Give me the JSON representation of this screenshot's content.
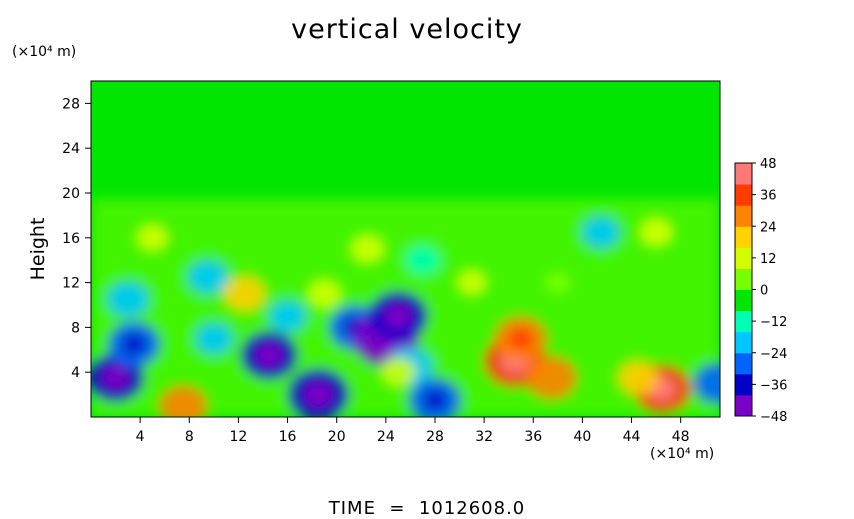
{
  "chart_data": {
    "type": "heatmap",
    "title": "vertical velocity",
    "ylabel": "Height",
    "x_unit": "(×10⁴ m)",
    "y_unit": "(×10⁴ m)",
    "footer": "TIME  =  1012608.0",
    "x_ticks": [
      4,
      8,
      12,
      16,
      20,
      24,
      28,
      32,
      36,
      40,
      44,
      48
    ],
    "y_ticks": [
      4,
      8,
      12,
      16,
      20,
      24,
      28
    ],
    "xlim": [
      0,
      51.2
    ],
    "ylim": [
      0,
      30
    ],
    "colorbar": {
      "ticks": [
        48,
        36,
        24,
        12,
        0,
        -12,
        -24,
        -36,
        -48
      ],
      "labels": [
        "48",
        "36",
        "24",
        "12",
        "0",
        "−12",
        "−24",
        "−36",
        "−48"
      ],
      "range": [
        -48,
        48
      ]
    },
    "features": [
      {
        "x": 2.0,
        "y": 3.5,
        "value": -34
      },
      {
        "x": 3.5,
        "y": 6.5,
        "value": -30
      },
      {
        "x": 3.0,
        "y": 10.5,
        "value": -22
      },
      {
        "x": 7.5,
        "y": 1.0,
        "value": 26
      },
      {
        "x": 12.5,
        "y": 11.0,
        "value": 22
      },
      {
        "x": 9.5,
        "y": 12.5,
        "value": -20
      },
      {
        "x": 10.0,
        "y": 7.0,
        "value": -18
      },
      {
        "x": 14.5,
        "y": 5.5,
        "value": -34
      },
      {
        "x": 18.5,
        "y": 2.0,
        "value": -38
      },
      {
        "x": 16.0,
        "y": 9.0,
        "value": -18
      },
      {
        "x": 19.0,
        "y": 11.0,
        "value": 14
      },
      {
        "x": 21.5,
        "y": 8.0,
        "value": -30
      },
      {
        "x": 24.0,
        "y": 7.0,
        "value": -42
      },
      {
        "x": 25.0,
        "y": 9.0,
        "value": -36
      },
      {
        "x": 26.0,
        "y": 4.5,
        "value": -24
      },
      {
        "x": 28.0,
        "y": 1.5,
        "value": -30
      },
      {
        "x": 22.5,
        "y": 15.0,
        "value": 14
      },
      {
        "x": 27.0,
        "y": 14.0,
        "value": -16
      },
      {
        "x": 25.0,
        "y": 4.0,
        "value": 14
      },
      {
        "x": 34.5,
        "y": 5.0,
        "value": 38
      },
      {
        "x": 37.5,
        "y": 3.5,
        "value": 28
      },
      {
        "x": 35.0,
        "y": 7.0,
        "value": 30
      },
      {
        "x": 46.5,
        "y": 2.5,
        "value": 34
      },
      {
        "x": 44.5,
        "y": 3.5,
        "value": 20
      },
      {
        "x": 46.0,
        "y": 16.5,
        "value": 14
      },
      {
        "x": 41.5,
        "y": 16.5,
        "value": -18
      },
      {
        "x": 51.0,
        "y": 3.0,
        "value": -26
      },
      {
        "x": 5.0,
        "y": 16.0,
        "value": 12
      },
      {
        "x": 31.0,
        "y": 12.0,
        "value": 10
      },
      {
        "x": 38.0,
        "y": 12.0,
        "value": 6
      }
    ]
  },
  "colors": {
    "scale": [
      "#7b00c8",
      "#0000c8",
      "#0064ff",
      "#00c8ff",
      "#00ffb4",
      "#00e600",
      "#78ff00",
      "#d2ff00",
      "#ffd200",
      "#ff8200",
      "#ff3c00",
      "#ff7878"
    ],
    "background": "#00e600"
  }
}
